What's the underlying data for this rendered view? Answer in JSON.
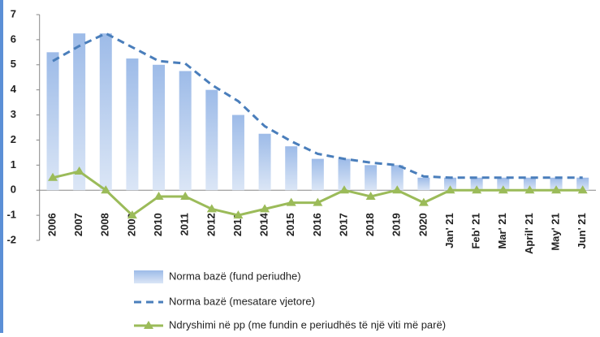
{
  "chart_data": {
    "type": "combo",
    "categories": [
      "2006",
      "2007",
      "2008",
      "2009",
      "2010",
      "2011",
      "2012",
      "2013",
      "2014",
      "2015",
      "2016",
      "2017",
      "2018",
      "2019",
      "2020",
      "Jan' 21",
      "Feb' 21",
      "Mar' 21",
      "April' 21",
      "May' 21",
      "Jun' 21"
    ],
    "series": [
      {
        "name": "Norma bazë (fund periudhe)",
        "type": "bar",
        "color": "#a9c4eb",
        "values": [
          5.5,
          6.25,
          6.25,
          5.25,
          5.0,
          4.75,
          4.0,
          3.0,
          2.25,
          1.75,
          1.25,
          1.25,
          1.0,
          1.0,
          0.5,
          0.5,
          0.5,
          0.5,
          0.5,
          0.5,
          0.5
        ]
      },
      {
        "name": "Norma bazë (mesatare vjetore)",
        "type": "dashed-line",
        "color": "#4a7ebb",
        "values": [
          5.15,
          5.75,
          6.25,
          5.7,
          5.15,
          5.05,
          4.2,
          3.55,
          2.55,
          1.95,
          1.45,
          1.25,
          1.1,
          1.0,
          0.55,
          0.5,
          0.5,
          0.5,
          0.5,
          0.5,
          0.5
        ]
      },
      {
        "name": "Ndryshimi në pp (me fundin e periudhës të një viti më parë)",
        "type": "line",
        "color": "#9bbb59",
        "values": [
          0.5,
          0.75,
          0,
          -1,
          -0.25,
          -0.25,
          -0.75,
          -1,
          -0.75,
          -0.5,
          -0.5,
          0,
          -0.25,
          0,
          -0.5,
          0,
          0,
          0,
          0,
          0,
          0
        ]
      }
    ],
    "ylim": [
      -2,
      7
    ],
    "yticks": [
      -2,
      -1,
      0,
      1,
      2,
      3,
      4,
      5,
      6,
      7
    ],
    "legend": "bottom"
  }
}
